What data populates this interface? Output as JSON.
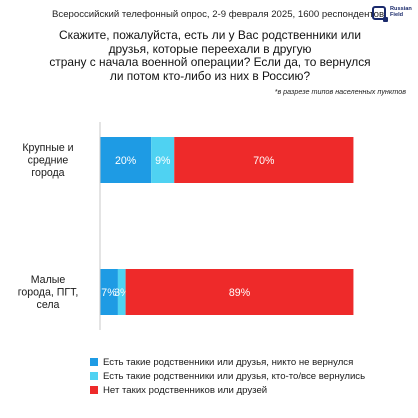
{
  "header": {
    "survey_info": "Всероссийский телефонный опрос, 2-9 февраля 2025, 1600 респондентов",
    "logo_line1": "Russian",
    "logo_line2": "Field"
  },
  "footnote": "*в разрезе типов населенных пунктов",
  "colors": {
    "none_returned": "#1e9be4",
    "some_returned": "#4fd2f2",
    "no_relatives": "#ee2a2a"
  },
  "chart_data": {
    "type": "bar",
    "orientation": "horizontal",
    "stacked": true,
    "title_lines": [
      "Скажите, пожалуйста, есть ли у Вас родственники или",
      "друзья, которые переехали в другую",
      "страну с начала военной операции? Если да, то вернулся",
      "ли потом кто-либо из них в Россию?"
    ],
    "categories": [
      [
        "Крупные и",
        "средние",
        "города"
      ],
      [
        "Малые",
        "города, ПГТ,",
        "села"
      ]
    ],
    "series": [
      {
        "name": "Есть такие родственники или друзья, никто не вернулся",
        "color": "#1e9be4",
        "values": [
          20,
          7
        ],
        "labels": [
          "20%",
          "7%"
        ]
      },
      {
        "name": "Есть такие родственники или друзья, кто-то/все вернулись",
        "color": "#4fd2f2",
        "values": [
          9,
          3
        ],
        "labels": [
          "9%",
          "3%"
        ]
      },
      {
        "name": "Нет таких родственников или друзей",
        "color": "#ee2a2a",
        "values": [
          70,
          89
        ],
        "labels": [
          "70%",
          "89%"
        ]
      }
    ],
    "xlim": [
      0,
      100
    ],
    "legend_position": "bottom",
    "grid": false
  }
}
